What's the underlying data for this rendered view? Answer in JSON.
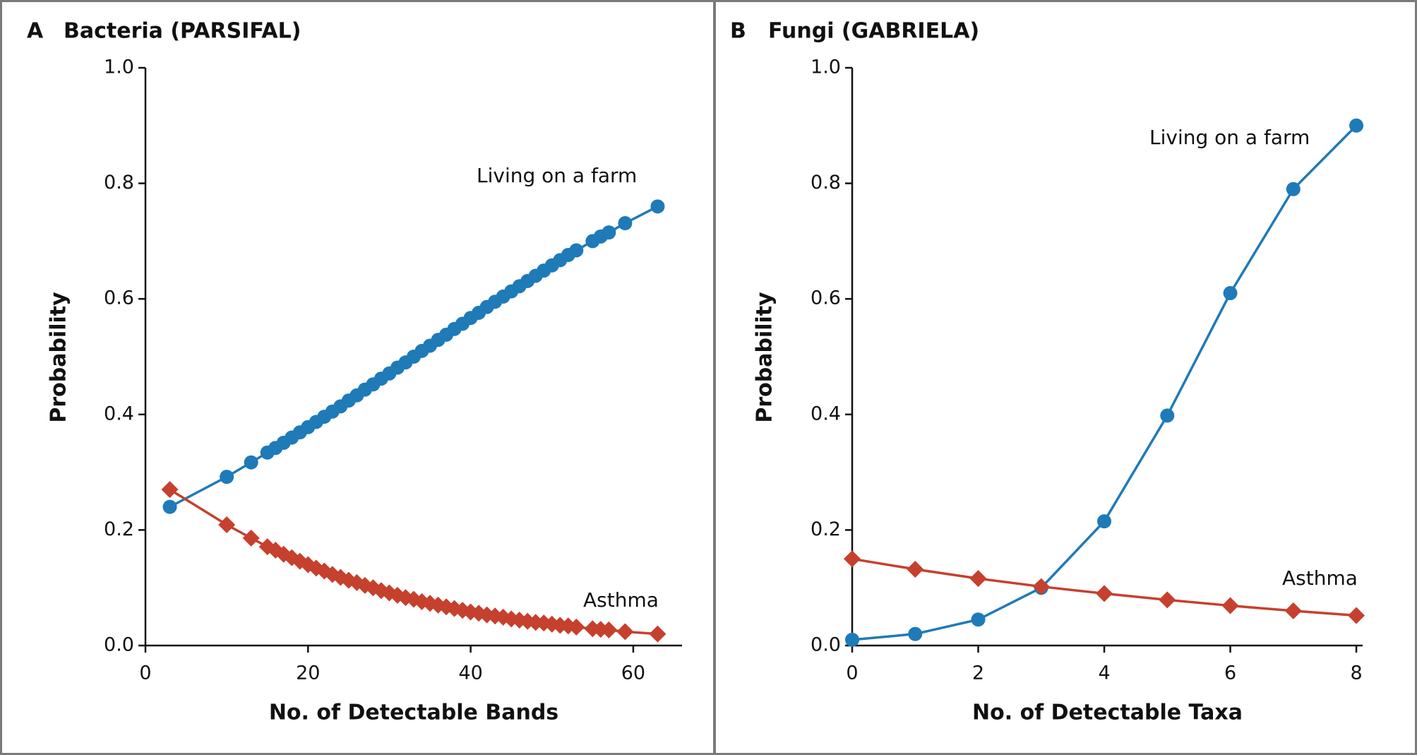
{
  "chart_data": [
    {
      "type": "line",
      "panel": "A",
      "title": "Bacteria (PARSIFAL)",
      "x_label": "No. of Detectable Bands",
      "y_label": "Probability",
      "x": [
        3,
        10,
        13,
        15,
        16,
        17,
        18,
        19,
        20,
        21,
        22,
        23,
        24,
        25,
        26,
        27,
        28,
        29,
        30,
        31,
        32,
        33,
        34,
        35,
        36,
        37,
        38,
        39,
        40,
        41,
        42,
        43,
        44,
        45,
        46,
        47,
        48,
        49,
        50,
        51,
        52,
        53,
        55,
        56,
        57,
        59,
        63
      ],
      "series": [
        {
          "name": "Living on a farm",
          "color": "#1f7ab8",
          "marker": "circle",
          "values": [
            0.24,
            0.292,
            0.317,
            0.334,
            0.342,
            0.351,
            0.36,
            0.369,
            0.378,
            0.387,
            0.396,
            0.405,
            0.414,
            0.424,
            0.433,
            0.443,
            0.452,
            0.462,
            0.471,
            0.481,
            0.49,
            0.5,
            0.51,
            0.519,
            0.529,
            0.538,
            0.548,
            0.557,
            0.567,
            0.576,
            0.586,
            0.595,
            0.604,
            0.613,
            0.622,
            0.631,
            0.64,
            0.649,
            0.658,
            0.667,
            0.676,
            0.684,
            0.7,
            0.708,
            0.715,
            0.731,
            0.76
          ]
        },
        {
          "name": "Asthma",
          "color": "#c6402e",
          "marker": "diamond",
          "values": [
            0.27,
            0.209,
            0.186,
            0.171,
            0.165,
            0.158,
            0.152,
            0.146,
            0.14,
            0.134,
            0.129,
            0.123,
            0.118,
            0.113,
            0.109,
            0.104,
            0.1,
            0.095,
            0.091,
            0.087,
            0.083,
            0.08,
            0.076,
            0.073,
            0.07,
            0.067,
            0.064,
            0.061,
            0.058,
            0.056,
            0.053,
            0.051,
            0.049,
            0.046,
            0.044,
            0.042,
            0.04,
            0.039,
            0.037,
            0.035,
            0.034,
            0.032,
            0.029,
            0.028,
            0.027,
            0.024,
            0.02
          ]
        }
      ],
      "xlim": [
        0,
        66
      ],
      "xticks": [
        0,
        20,
        40,
        60
      ],
      "ylim": [
        0,
        1
      ],
      "yticks": [
        {
          "value": 0,
          "label": "0.0"
        },
        0.2,
        0.4,
        0.6,
        0.8,
        {
          "value": 1,
          "label": "1.0"
        }
      ]
    },
    {
      "type": "line",
      "panel": "B",
      "title": "Fungi (GABRIELA)",
      "x_label": "No. of Detectable Taxa",
      "y_label": "Probability",
      "x": [
        0,
        1,
        2,
        3,
        4,
        5,
        6,
        7,
        8
      ],
      "series": [
        {
          "name": "Living on a farm",
          "color": "#1f7ab8",
          "marker": "circle",
          "values": [
            0.01,
            0.02,
            0.045,
            0.1,
            0.215,
            0.398,
            0.61,
            0.79,
            0.9
          ]
        },
        {
          "name": "Asthma",
          "color": "#c6402e",
          "marker": "diamond",
          "values": [
            0.15,
            0.132,
            0.116,
            0.102,
            0.09,
            0.079,
            0.069,
            0.06,
            0.052
          ]
        }
      ],
      "xlim": [
        0,
        8.1
      ],
      "xticks": [
        0,
        2,
        4,
        6,
        8
      ],
      "ylim": [
        0,
        1
      ],
      "yticks": [
        {
          "value": 0,
          "label": "0.0"
        },
        0.2,
        0.4,
        0.6,
        0.8,
        {
          "value": 1,
          "label": "1.0"
        }
      ]
    }
  ]
}
